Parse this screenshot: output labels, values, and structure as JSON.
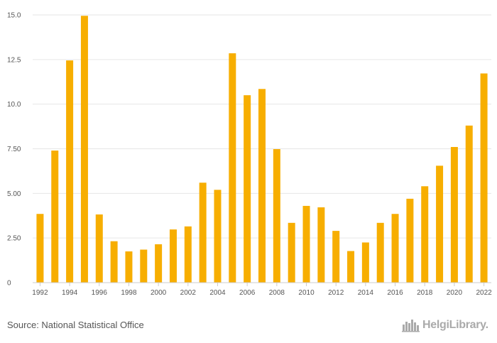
{
  "chart_data": {
    "type": "bar",
    "categories": [
      "1992",
      "1993",
      "1994",
      "1995",
      "1996",
      "1997",
      "1998",
      "1999",
      "2000",
      "2001",
      "2002",
      "2003",
      "2004",
      "2005",
      "2006",
      "2007",
      "2008",
      "2009",
      "2010",
      "2011",
      "2012",
      "2013",
      "2014",
      "2015",
      "2016",
      "2017",
      "2018",
      "2019",
      "2020",
      "2021",
      "2022"
    ],
    "values": [
      3.85,
      7.4,
      12.45,
      14.95,
      3.82,
      2.32,
      1.75,
      1.85,
      2.15,
      2.98,
      3.15,
      5.6,
      5.2,
      12.85,
      10.5,
      10.85,
      7.48,
      3.35,
      4.3,
      4.22,
      2.9,
      1.77,
      2.25,
      3.35,
      3.85,
      4.7,
      5.4,
      6.55,
      7.6,
      8.8,
      11.72
    ],
    "x_tick_labels": [
      "1992",
      "1994",
      "1996",
      "1998",
      "2000",
      "2002",
      "2004",
      "2006",
      "2008",
      "2010",
      "2012",
      "2014",
      "2016",
      "2018",
      "2020",
      "2022"
    ],
    "y_ticks": [
      "0",
      "2.50",
      "5.00",
      "7.50",
      "10.0",
      "12.5",
      "15.0"
    ],
    "y_tick_values": [
      0,
      2.5,
      5,
      7.5,
      10,
      12.5,
      15
    ],
    "ylim": [
      0,
      15
    ],
    "title": "",
    "xlabel": "",
    "ylabel": "",
    "grid": true,
    "legend": "none",
    "bar_color": "#f7ae00",
    "grid_color": "#e6e6e6"
  },
  "footer": {
    "source": "Source: National Statistical Office",
    "logo_text": "HelgiLibrary.",
    "logo_icon": "city-skyline-icon"
  }
}
